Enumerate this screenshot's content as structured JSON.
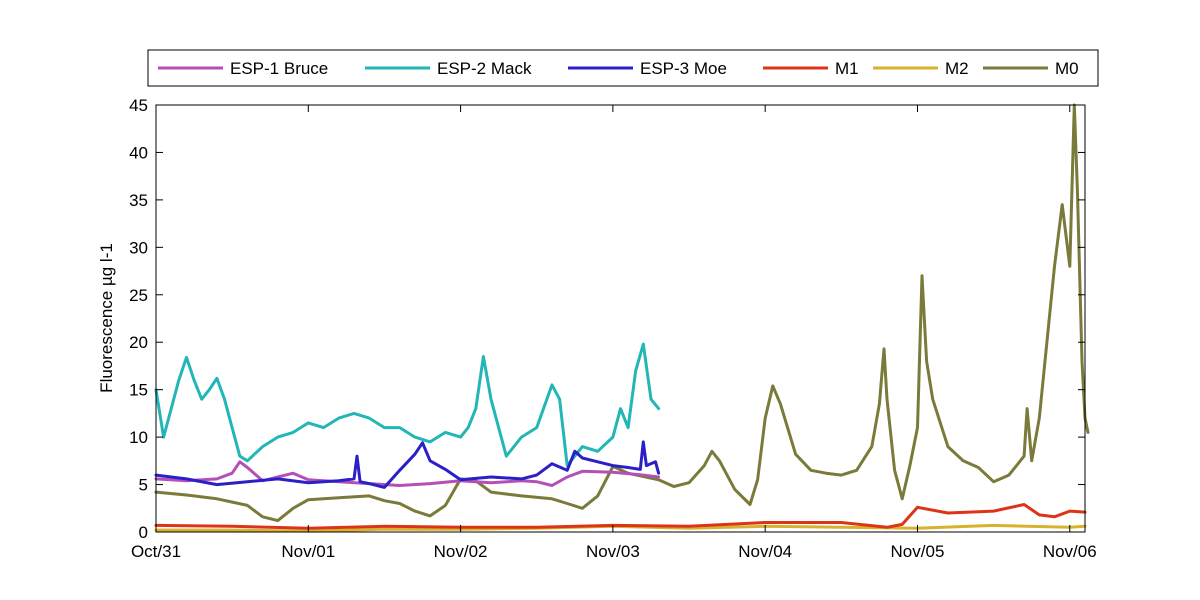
{
  "chart_data": {
    "type": "line",
    "title": "",
    "xlabel": "",
    "ylabel": "Fluorescence µg l-1",
    "x_unit": "days",
    "xlim": [
      0,
      6.1
    ],
    "ylim": [
      0,
      45
    ],
    "x_ticks": [
      {
        "value": 0,
        "label": "Oct/31"
      },
      {
        "value": 1,
        "label": "Nov/01"
      },
      {
        "value": 2,
        "label": "Nov/02"
      },
      {
        "value": 3,
        "label": "Nov/03"
      },
      {
        "value": 4,
        "label": "Nov/04"
      },
      {
        "value": 5,
        "label": "Nov/05"
      },
      {
        "value": 6,
        "label": "Nov/06"
      }
    ],
    "y_ticks": [
      0,
      5,
      10,
      15,
      20,
      25,
      30,
      35,
      40,
      45
    ],
    "grid": false,
    "legend_position": "top",
    "series": [
      {
        "name": "ESP-1 Bruce",
        "color": "#b44fb8",
        "points": [
          [
            0,
            5.6
          ],
          [
            0.2,
            5.4
          ],
          [
            0.4,
            5.6
          ],
          [
            0.5,
            6.2
          ],
          [
            0.55,
            7.4
          ],
          [
            0.6,
            6.8
          ],
          [
            0.7,
            5.4
          ],
          [
            0.8,
            5.8
          ],
          [
            0.9,
            6.2
          ],
          [
            1.0,
            5.5
          ],
          [
            1.2,
            5.3
          ],
          [
            1.4,
            5.1
          ],
          [
            1.6,
            4.9
          ],
          [
            1.8,
            5.1
          ],
          [
            2.0,
            5.4
          ],
          [
            2.2,
            5.2
          ],
          [
            2.4,
            5.4
          ],
          [
            2.5,
            5.3
          ],
          [
            2.6,
            4.9
          ],
          [
            2.7,
            5.8
          ],
          [
            2.8,
            6.4
          ],
          [
            3.0,
            6.3
          ],
          [
            3.2,
            6.0
          ],
          [
            3.3,
            5.8
          ]
        ]
      },
      {
        "name": "ESP-2 Mack",
        "color": "#22b6b6",
        "points": [
          [
            0,
            15
          ],
          [
            0.05,
            10
          ],
          [
            0.1,
            13
          ],
          [
            0.15,
            16
          ],
          [
            0.2,
            18.4
          ],
          [
            0.25,
            16
          ],
          [
            0.3,
            14
          ],
          [
            0.35,
            15
          ],
          [
            0.4,
            16.2
          ],
          [
            0.45,
            14
          ],
          [
            0.5,
            11
          ],
          [
            0.55,
            8
          ],
          [
            0.6,
            7.5
          ],
          [
            0.7,
            9
          ],
          [
            0.8,
            10
          ],
          [
            0.9,
            10.5
          ],
          [
            1.0,
            11.5
          ],
          [
            1.1,
            11
          ],
          [
            1.2,
            12
          ],
          [
            1.3,
            12.5
          ],
          [
            1.4,
            12
          ],
          [
            1.5,
            11
          ],
          [
            1.6,
            11
          ],
          [
            1.7,
            10
          ],
          [
            1.8,
            9.5
          ],
          [
            1.9,
            10.5
          ],
          [
            2.0,
            10
          ],
          [
            2.05,
            11
          ],
          [
            2.1,
            13
          ],
          [
            2.15,
            18.5
          ],
          [
            2.2,
            14
          ],
          [
            2.3,
            8
          ],
          [
            2.4,
            10
          ],
          [
            2.5,
            11
          ],
          [
            2.6,
            15.5
          ],
          [
            2.65,
            14
          ],
          [
            2.7,
            7
          ],
          [
            2.8,
            9
          ],
          [
            2.9,
            8.5
          ],
          [
            3.0,
            10
          ],
          [
            3.05,
            13
          ],
          [
            3.1,
            11
          ],
          [
            3.15,
            17
          ],
          [
            3.2,
            19.8
          ],
          [
            3.25,
            14
          ],
          [
            3.3,
            13
          ]
        ]
      },
      {
        "name": "ESP-3 Moe",
        "color": "#2b1fc7",
        "points": [
          [
            0,
            6
          ],
          [
            0.2,
            5.6
          ],
          [
            0.4,
            5.0
          ],
          [
            0.6,
            5.3
          ],
          [
            0.8,
            5.6
          ],
          [
            1.0,
            5.2
          ],
          [
            1.2,
            5.4
          ],
          [
            1.3,
            5.6
          ],
          [
            1.32,
            8
          ],
          [
            1.34,
            5.3
          ],
          [
            1.4,
            5.1
          ],
          [
            1.5,
            4.7
          ],
          [
            1.6,
            6.5
          ],
          [
            1.7,
            8.2
          ],
          [
            1.75,
            9.4
          ],
          [
            1.8,
            7.5
          ],
          [
            1.9,
            6.6
          ],
          [
            2.0,
            5.5
          ],
          [
            2.2,
            5.8
          ],
          [
            2.4,
            5.6
          ],
          [
            2.5,
            6
          ],
          [
            2.6,
            7.2
          ],
          [
            2.7,
            6.5
          ],
          [
            2.75,
            8.5
          ],
          [
            2.8,
            7.8
          ],
          [
            2.9,
            7.4
          ],
          [
            3.0,
            7.0
          ],
          [
            3.1,
            6.8
          ],
          [
            3.18,
            6.6
          ],
          [
            3.2,
            9.5
          ],
          [
            3.22,
            7
          ],
          [
            3.28,
            7.4
          ],
          [
            3.3,
            6.2
          ]
        ]
      },
      {
        "name": "M1",
        "color": "#dd3418",
        "points": [
          [
            0,
            0.7
          ],
          [
            0.5,
            0.6
          ],
          [
            1.0,
            0.4
          ],
          [
            1.5,
            0.6
          ],
          [
            2.0,
            0.5
          ],
          [
            2.5,
            0.5
          ],
          [
            3.0,
            0.7
          ],
          [
            3.5,
            0.6
          ],
          [
            4.0,
            1.0
          ],
          [
            4.5,
            1.0
          ],
          [
            4.8,
            0.5
          ],
          [
            4.9,
            0.8
          ],
          [
            5.0,
            2.6
          ],
          [
            5.2,
            2.0
          ],
          [
            5.5,
            2.2
          ],
          [
            5.7,
            2.9
          ],
          [
            5.8,
            1.8
          ],
          [
            5.9,
            1.6
          ],
          [
            6.0,
            2.2
          ],
          [
            6.1,
            2.1
          ]
        ]
      },
      {
        "name": "M2",
        "color": "#d8b22e",
        "points": [
          [
            0,
            0.2
          ],
          [
            0.5,
            0.2
          ],
          [
            1.0,
            0.1
          ],
          [
            1.5,
            0.3
          ],
          [
            2.0,
            0.3
          ],
          [
            2.5,
            0.4
          ],
          [
            3.0,
            0.6
          ],
          [
            3.5,
            0.4
          ],
          [
            4.0,
            0.6
          ],
          [
            4.5,
            0.5
          ],
          [
            5.0,
            0.4
          ],
          [
            5.5,
            0.7
          ],
          [
            6.0,
            0.5
          ],
          [
            6.1,
            0.6
          ]
        ]
      },
      {
        "name": "M0",
        "color": "#7a7a3a",
        "points": [
          [
            0,
            4.2
          ],
          [
            0.2,
            3.9
          ],
          [
            0.4,
            3.5
          ],
          [
            0.6,
            2.8
          ],
          [
            0.7,
            1.6
          ],
          [
            0.8,
            1.2
          ],
          [
            0.9,
            2.5
          ],
          [
            1.0,
            3.4
          ],
          [
            1.2,
            3.6
          ],
          [
            1.4,
            3.8
          ],
          [
            1.5,
            3.3
          ],
          [
            1.6,
            3.0
          ],
          [
            1.7,
            2.2
          ],
          [
            1.8,
            1.7
          ],
          [
            1.9,
            2.8
          ],
          [
            2.0,
            5.6
          ],
          [
            2.1,
            5.4
          ],
          [
            2.2,
            4.2
          ],
          [
            2.4,
            3.8
          ],
          [
            2.6,
            3.5
          ],
          [
            2.7,
            3.0
          ],
          [
            2.8,
            2.5
          ],
          [
            2.9,
            3.8
          ],
          [
            3.0,
            6.9
          ],
          [
            3.1,
            6.2
          ],
          [
            3.3,
            5.5
          ],
          [
            3.4,
            4.8
          ],
          [
            3.5,
            5.2
          ],
          [
            3.6,
            7.0
          ],
          [
            3.65,
            8.5
          ],
          [
            3.7,
            7.5
          ],
          [
            3.8,
            4.5
          ],
          [
            3.9,
            2.9
          ],
          [
            3.95,
            5.5
          ],
          [
            4.0,
            12.0
          ],
          [
            4.05,
            15.4
          ],
          [
            4.1,
            13.5
          ],
          [
            4.2,
            8.2
          ],
          [
            4.3,
            6.5
          ],
          [
            4.4,
            6.2
          ],
          [
            4.5,
            6.0
          ],
          [
            4.6,
            6.5
          ],
          [
            4.7,
            9.0
          ],
          [
            4.75,
            13.5
          ],
          [
            4.78,
            19.3
          ],
          [
            4.8,
            14.0
          ],
          [
            4.85,
            6.5
          ],
          [
            4.9,
            3.5
          ],
          [
            4.95,
            7.0
          ],
          [
            5.0,
            11.0
          ],
          [
            5.03,
            27.0
          ],
          [
            5.06,
            18.0
          ],
          [
            5.1,
            14.0
          ],
          [
            5.2,
            9.0
          ],
          [
            5.3,
            7.5
          ],
          [
            5.4,
            6.8
          ],
          [
            5.5,
            5.3
          ],
          [
            5.6,
            6.0
          ],
          [
            5.7,
            8.0
          ],
          [
            5.72,
            13.0
          ],
          [
            5.75,
            7.5
          ],
          [
            5.8,
            12.0
          ],
          [
            5.85,
            20.0
          ],
          [
            5.9,
            28.0
          ],
          [
            5.95,
            34.5
          ],
          [
            6.0,
            28.0
          ],
          [
            6.03,
            45.0
          ],
          [
            6.05,
            36.0
          ],
          [
            6.08,
            18.0
          ],
          [
            6.1,
            12.0
          ],
          [
            6.12,
            10.5
          ]
        ]
      }
    ]
  }
}
